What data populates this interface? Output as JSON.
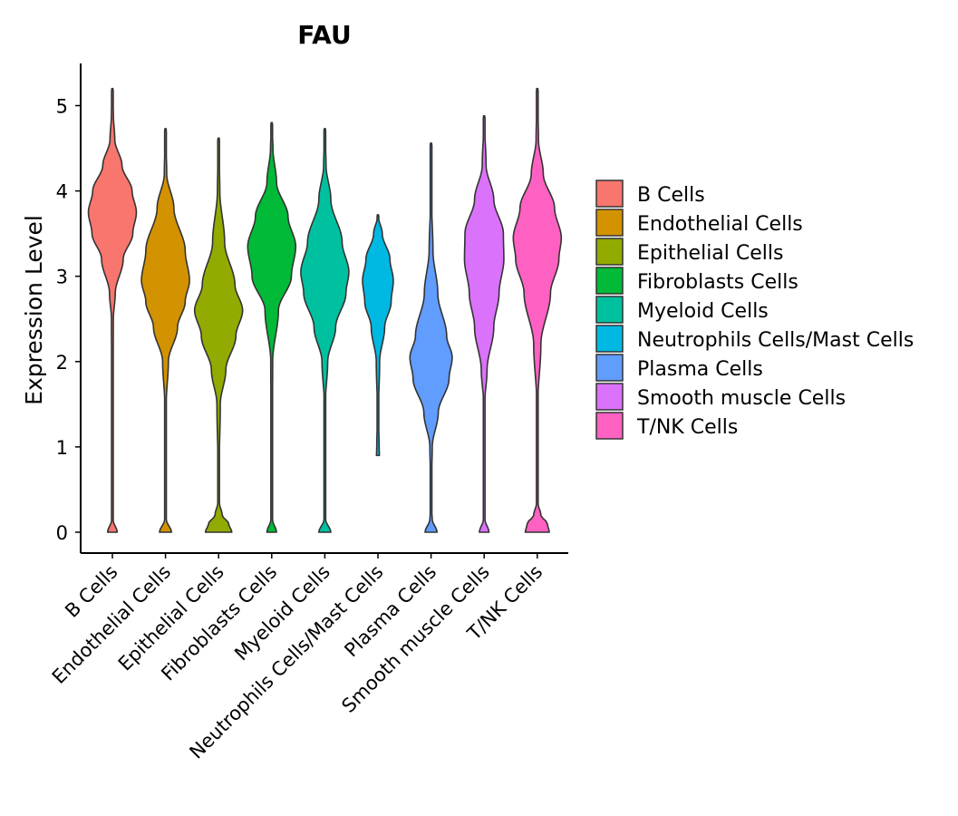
{
  "chart_data": {
    "type": "violin",
    "title": "FAU",
    "xlabel": "",
    "ylabel": "Expression Level",
    "ylim": [
      0,
      5.5
    ],
    "yticks": [
      0,
      1,
      2,
      3,
      4,
      5
    ],
    "legend_position": "right",
    "categories": [
      "B Cells",
      "Endothelial Cells",
      "Epithelial Cells",
      "Fibroblasts Cells",
      "Myeloid Cells",
      "Neutrophils Cells/Mast Cells",
      "Plasma Cells",
      "Smooth muscle Cells",
      "T/NK Cells"
    ],
    "colors": [
      "#F8766D",
      "#D39200",
      "#93AA00",
      "#00BA38",
      "#00C19F",
      "#00B9E3",
      "#619CFF",
      "#DB72FB",
      "#FF61C3"
    ],
    "series": [
      {
        "name": "B Cells",
        "min": 0,
        "max": 5.2,
        "median": 3.7,
        "density": [
          [
            0,
            0.2
          ],
          [
            0.15,
            0.02
          ],
          [
            0.3,
            0
          ],
          [
            0.6,
            0
          ],
          [
            1.5,
            0.02
          ],
          [
            2.5,
            0.04
          ],
          [
            2.8,
            0.12
          ],
          [
            3.2,
            0.45
          ],
          [
            3.5,
            0.85
          ],
          [
            3.75,
            1.0
          ],
          [
            4.0,
            0.82
          ],
          [
            4.3,
            0.4
          ],
          [
            4.6,
            0.1
          ],
          [
            4.9,
            0.04
          ],
          [
            5.2,
            0
          ]
        ]
      },
      {
        "name": "Endothelial Cells",
        "min": 0,
        "max": 4.73,
        "median": 2.95,
        "density": [
          [
            0,
            0.25
          ],
          [
            0.15,
            0.03
          ],
          [
            0.3,
            0
          ],
          [
            0.6,
            0
          ],
          [
            1.5,
            0.03
          ],
          [
            2.0,
            0.12
          ],
          [
            2.4,
            0.5
          ],
          [
            2.7,
            0.82
          ],
          [
            2.95,
            1.0
          ],
          [
            3.3,
            0.82
          ],
          [
            3.8,
            0.35
          ],
          [
            4.2,
            0.05
          ],
          [
            4.73,
            0
          ]
        ]
      },
      {
        "name": "Epithelial Cells",
        "min": 0,
        "max": 4.62,
        "median": 2.6,
        "density": [
          [
            0,
            0.55
          ],
          [
            0.1,
            0.42
          ],
          [
            0.2,
            0.15
          ],
          [
            0.35,
            0.03
          ],
          [
            0.7,
            0.02
          ],
          [
            1.5,
            0.07
          ],
          [
            1.9,
            0.3
          ],
          [
            2.3,
            0.72
          ],
          [
            2.6,
            1.0
          ],
          [
            2.9,
            0.68
          ],
          [
            3.4,
            0.25
          ],
          [
            4.0,
            0.05
          ],
          [
            4.62,
            0
          ]
        ]
      },
      {
        "name": "Fibroblasts Cells",
        "min": 0,
        "max": 4.8,
        "median": 3.35,
        "density": [
          [
            0,
            0.2
          ],
          [
            0.15,
            0.03
          ],
          [
            0.3,
            0
          ],
          [
            0.6,
            0
          ],
          [
            2.0,
            0.04
          ],
          [
            2.6,
            0.28
          ],
          [
            3.0,
            0.82
          ],
          [
            3.35,
            1.0
          ],
          [
            3.7,
            0.68
          ],
          [
            4.1,
            0.2
          ],
          [
            4.5,
            0.05
          ],
          [
            4.8,
            0
          ]
        ]
      },
      {
        "name": "Myeloid Cells",
        "min": 0,
        "max": 4.73,
        "median": 3.0,
        "density": [
          [
            0,
            0.25
          ],
          [
            0.15,
            0.03
          ],
          [
            0.3,
            0
          ],
          [
            0.6,
            0
          ],
          [
            1.5,
            0.02
          ],
          [
            2.0,
            0.12
          ],
          [
            2.4,
            0.45
          ],
          [
            2.8,
            0.88
          ],
          [
            3.05,
            1.0
          ],
          [
            3.4,
            0.72
          ],
          [
            3.9,
            0.25
          ],
          [
            4.3,
            0.05
          ],
          [
            4.73,
            0
          ]
        ]
      },
      {
        "name": "Neutrophils Cells/Mast Cells",
        "min": 0.9,
        "max": 3.72,
        "median": 2.95,
        "density": [
          [
            0.9,
            0.06
          ],
          [
            1.0,
            0.05
          ],
          [
            1.4,
            0.02
          ],
          [
            2.0,
            0.07
          ],
          [
            2.4,
            0.28
          ],
          [
            2.7,
            0.55
          ],
          [
            2.95,
            0.64
          ],
          [
            3.2,
            0.5
          ],
          [
            3.5,
            0.18
          ],
          [
            3.72,
            0
          ]
        ]
      },
      {
        "name": "Plasma Cells",
        "min": 0,
        "max": 4.56,
        "median": 2.05,
        "density": [
          [
            0,
            0.25
          ],
          [
            0.15,
            0.05
          ],
          [
            0.3,
            0
          ],
          [
            0.6,
            0.02
          ],
          [
            1.0,
            0.05
          ],
          [
            1.4,
            0.3
          ],
          [
            1.8,
            0.75
          ],
          [
            2.05,
            0.88
          ],
          [
            2.3,
            0.65
          ],
          [
            2.8,
            0.28
          ],
          [
            3.3,
            0.08
          ],
          [
            3.9,
            0.02
          ],
          [
            4.56,
            0
          ]
        ]
      },
      {
        "name": "Smooth muscle Cells",
        "min": 0,
        "max": 4.88,
        "median": 3.15,
        "density": [
          [
            0,
            0.2
          ],
          [
            0.15,
            0.03
          ],
          [
            0.3,
            0
          ],
          [
            0.6,
            0
          ],
          [
            1.5,
            0.02
          ],
          [
            1.9,
            0.12
          ],
          [
            2.4,
            0.4
          ],
          [
            2.8,
            0.62
          ],
          [
            3.2,
            0.82
          ],
          [
            3.5,
            0.8
          ],
          [
            3.9,
            0.4
          ],
          [
            4.3,
            0.08
          ],
          [
            4.88,
            0
          ]
        ]
      },
      {
        "name": "T/NK Cells",
        "min": 0,
        "max": 5.2,
        "median": 3.4,
        "density": [
          [
            0,
            0.5
          ],
          [
            0.1,
            0.42
          ],
          [
            0.2,
            0.15
          ],
          [
            0.35,
            0.02
          ],
          [
            0.7,
            0
          ],
          [
            1.5,
            0.02
          ],
          [
            2.2,
            0.15
          ],
          [
            2.8,
            0.55
          ],
          [
            3.2,
            0.9
          ],
          [
            3.45,
            1.0
          ],
          [
            3.8,
            0.72
          ],
          [
            4.2,
            0.25
          ],
          [
            4.6,
            0.05
          ],
          [
            5.2,
            0
          ]
        ]
      }
    ]
  }
}
